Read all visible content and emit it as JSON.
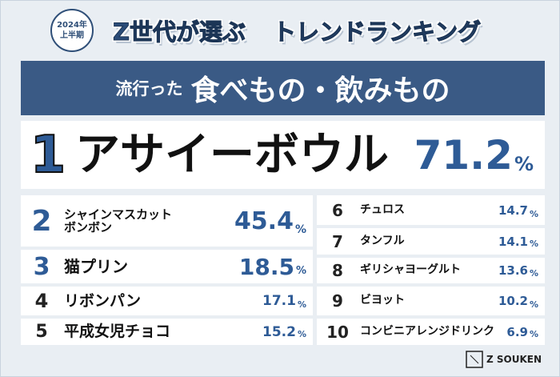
{
  "header": {
    "badge": [
      "2024年",
      "上半期"
    ],
    "title_a": "Z世代が選ぶ",
    "title_b": "トレンドランキング"
  },
  "banner": {
    "prefix": "流行った",
    "main": "食べもの・飲みもの"
  },
  "ranking": [
    {
      "rank": "1",
      "name": "アサイーボウル",
      "value": "71.2",
      "unit": "%"
    },
    {
      "rank": "2",
      "name": "シャインマスカット\nボンボン",
      "value": "45.4",
      "unit": "%"
    },
    {
      "rank": "3",
      "name": "猫プリン",
      "value": "18.5",
      "unit": "%"
    },
    {
      "rank": "4",
      "name": "リボンパン",
      "value": "17.1",
      "unit": "%"
    },
    {
      "rank": "5",
      "name": "平成女児チョコ",
      "value": "15.2",
      "unit": "%"
    },
    {
      "rank": "6",
      "name": "チュロス",
      "value": "14.7",
      "unit": "%"
    },
    {
      "rank": "7",
      "name": "タンフル",
      "value": "14.1",
      "unit": "%"
    },
    {
      "rank": "8",
      "name": "ギリシャヨーグルト",
      "value": "13.6",
      "unit": "%"
    },
    {
      "rank": "9",
      "name": "ビヨット",
      "value": "10.2",
      "unit": "%"
    },
    {
      "rank": "10",
      "name": "コンビニアレンジドリンク",
      "value": "6.9",
      "unit": "%"
    }
  ],
  "footer": {
    "logo": "Z SOUKEN"
  }
}
